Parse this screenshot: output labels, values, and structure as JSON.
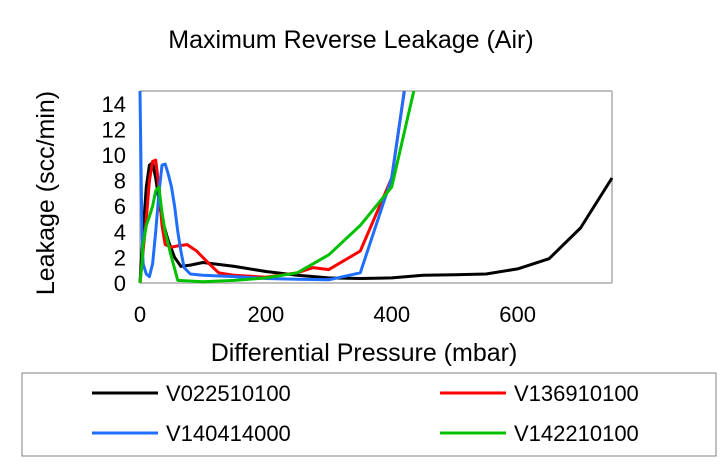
{
  "chart_data": {
    "type": "line",
    "title": "Maximum Reverse Leakage (Air)",
    "xlabel": "Differential Pressure (mbar)",
    "ylabel": "Leakage (scc/min)",
    "xlim": [
      0,
      750
    ],
    "ylim": [
      0,
      15
    ],
    "xticks": [
      "0",
      "200",
      "400",
      "600"
    ],
    "yticks": [
      "0",
      "2",
      "4",
      "6",
      "8",
      "10",
      "12",
      "14"
    ],
    "grid": "horizontal-top-only",
    "legend_position": "bottom",
    "series": [
      {
        "name": "V022510100",
        "color": "#000000",
        "points": [
          [
            0,
            0
          ],
          [
            5,
            4
          ],
          [
            10,
            7.5
          ],
          [
            15,
            9.2
          ],
          [
            20,
            9.4
          ],
          [
            25,
            8.2
          ],
          [
            30,
            6.5
          ],
          [
            35,
            5
          ],
          [
            45,
            3.3
          ],
          [
            55,
            2
          ],
          [
            65,
            1.3
          ],
          [
            80,
            1.4
          ],
          [
            100,
            1.6
          ],
          [
            150,
            1.3
          ],
          [
            200,
            0.9
          ],
          [
            250,
            0.6
          ],
          [
            300,
            0.4
          ],
          [
            350,
            0.35
          ],
          [
            400,
            0.4
          ],
          [
            450,
            0.6
          ],
          [
            500,
            0.65
          ],
          [
            550,
            0.7
          ],
          [
            600,
            1.1
          ],
          [
            650,
            1.9
          ],
          [
            700,
            4.3
          ],
          [
            750,
            8.2
          ]
        ]
      },
      {
        "name": "V136910100",
        "color": "#ff0000",
        "points": [
          [
            0,
            0
          ],
          [
            5,
            2.5
          ],
          [
            10,
            5
          ],
          [
            15,
            8
          ],
          [
            20,
            9.5
          ],
          [
            25,
            9.6
          ],
          [
            30,
            7.5
          ],
          [
            35,
            4.5
          ],
          [
            40,
            3
          ],
          [
            50,
            2.8
          ],
          [
            60,
            2.9
          ],
          [
            75,
            3.0
          ],
          [
            90,
            2.5
          ],
          [
            110,
            1.5
          ],
          [
            125,
            0.8
          ],
          [
            150,
            0.6
          ],
          [
            200,
            0.45
          ],
          [
            250,
            0.8
          ],
          [
            275,
            1.2
          ],
          [
            300,
            1.05
          ],
          [
            350,
            2.5
          ],
          [
            400,
            8.2
          ],
          [
            420,
            15
          ]
        ]
      },
      {
        "name": "V140414000",
        "color": "#1f6fff",
        "points": [
          [
            0,
            15
          ],
          [
            3,
            4
          ],
          [
            5,
            1.5
          ],
          [
            10,
            0.7
          ],
          [
            15,
            0.5
          ],
          [
            20,
            1.5
          ],
          [
            25,
            4
          ],
          [
            30,
            7
          ],
          [
            35,
            9.2
          ],
          [
            40,
            9.3
          ],
          [
            45,
            8.5
          ],
          [
            50,
            7.5
          ],
          [
            55,
            6
          ],
          [
            60,
            4
          ],
          [
            65,
            2.5
          ],
          [
            70,
            1.2
          ],
          [
            80,
            0.7
          ],
          [
            100,
            0.6
          ],
          [
            150,
            0.5
          ],
          [
            200,
            0.35
          ],
          [
            250,
            0.3
          ],
          [
            300,
            0.25
          ],
          [
            350,
            0.8
          ],
          [
            400,
            8.2
          ],
          [
            420,
            15
          ]
        ]
      },
      {
        "name": "V142210100",
        "color": "#00c000",
        "points": [
          [
            0,
            0
          ],
          [
            3,
            1.5
          ],
          [
            5,
            3
          ],
          [
            10,
            4.5
          ],
          [
            15,
            5.2
          ],
          [
            20,
            6
          ],
          [
            25,
            7.2
          ],
          [
            30,
            7.5
          ],
          [
            35,
            5.5
          ],
          [
            40,
            4
          ],
          [
            50,
            2
          ],
          [
            60,
            0.2
          ],
          [
            100,
            0.1
          ],
          [
            150,
            0.2
          ],
          [
            200,
            0.4
          ],
          [
            250,
            0.8
          ],
          [
            300,
            2.2
          ],
          [
            350,
            4.5
          ],
          [
            400,
            7.5
          ],
          [
            435,
            15
          ]
        ]
      }
    ]
  }
}
